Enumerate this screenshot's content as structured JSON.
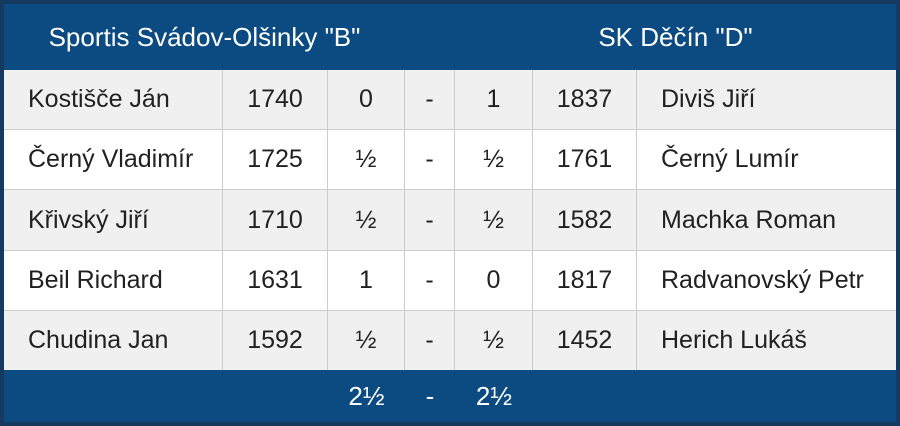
{
  "match": {
    "home_team": "Sportis Svádov-Olšinky \"B\"",
    "away_team": "SK Děčín \"D\"",
    "boards": [
      {
        "home_player": "Kostišče Ján",
        "home_rating": "1740",
        "home_score": "0",
        "separator": "-",
        "away_score": "1",
        "away_rating": "1837",
        "away_player": "Diviš Jiří"
      },
      {
        "home_player": "Černý Vladimír",
        "home_rating": "1725",
        "home_score": "½",
        "separator": "-",
        "away_score": "½",
        "away_rating": "1761",
        "away_player": "Černý Lumír"
      },
      {
        "home_player": "Křivský Jiří",
        "home_rating": "1710",
        "home_score": "½",
        "separator": "-",
        "away_score": "½",
        "away_rating": "1582",
        "away_player": "Machka Roman"
      },
      {
        "home_player": "Beil Richard",
        "home_rating": "1631",
        "home_score": "1",
        "separator": "-",
        "away_score": "0",
        "away_rating": "1817",
        "away_player": "Radvanovský Petr"
      },
      {
        "home_player": "Chudina Jan",
        "home_rating": "1592",
        "home_score": "½",
        "separator": "-",
        "away_score": "½",
        "away_rating": "1452",
        "away_player": "Herich Lukáš"
      }
    ],
    "total": {
      "home": "2½",
      "separator": "-",
      "away": "2½"
    },
    "colors": {
      "header_bg": "#0b4b81",
      "outer_border": "#16395f",
      "row_alt_bg": "#f0f0f0",
      "row_bg": "#ffffff",
      "cell_border": "#cccccc",
      "text": "#212121",
      "header_text": "#ffffff"
    }
  }
}
